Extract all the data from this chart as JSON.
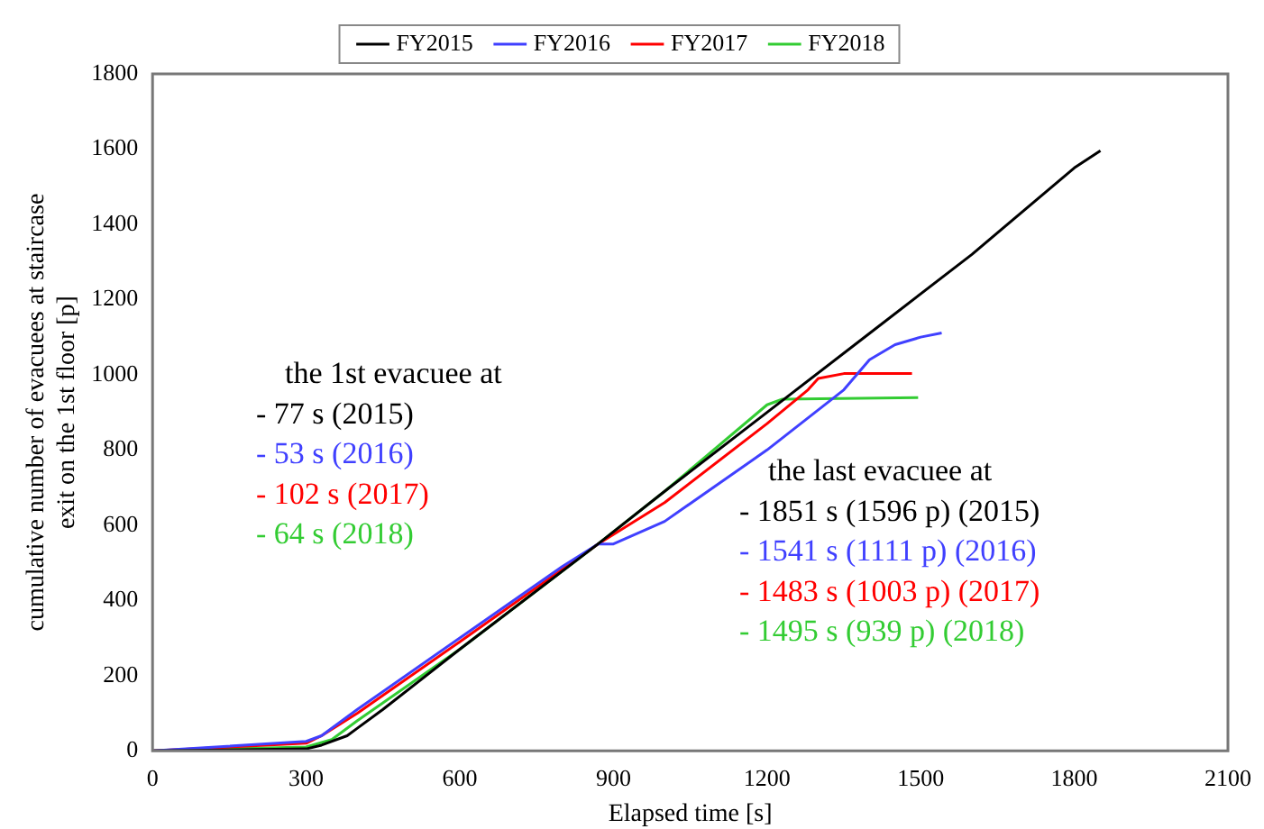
{
  "chart_data": {
    "type": "line",
    "xlabel": "Elapsed time [s]",
    "ylabel": "cumulative number of evacuees at staircase\nexit on the 1st floor [p]",
    "xlim": [
      0,
      2100
    ],
    "xticks": [
      0,
      300,
      600,
      900,
      1200,
      1500,
      1800,
      2100
    ],
    "ylim": [
      0,
      1800
    ],
    "yticks": [
      0,
      200,
      400,
      600,
      800,
      1000,
      1200,
      1400,
      1600,
      1800
    ],
    "grid": false,
    "legend": "top",
    "marker": "none",
    "line_style": "solid",
    "series": [
      {
        "name": "FY2015",
        "color": "#000000",
        "x": [
          0,
          300,
          330,
          380,
          400,
          450,
          600,
          870,
          1000,
          1200,
          1400,
          1600,
          1800,
          1851
        ],
        "values": [
          0,
          5,
          15,
          40,
          60,
          110,
          270,
          550,
          690,
          900,
          1110,
          1320,
          1550,
          1596
        ]
      },
      {
        "name": "FY2016",
        "color": "#4040ff",
        "x": [
          0,
          300,
          330,
          400,
          600,
          800,
          870,
          900,
          1000,
          1200,
          1350,
          1400,
          1450,
          1500,
          1541
        ],
        "values": [
          0,
          25,
          40,
          110,
          300,
          490,
          550,
          550,
          610,
          800,
          960,
          1040,
          1080,
          1100,
          1111
        ]
      },
      {
        "name": "FY2017",
        "color": "#ff0000",
        "x": [
          0,
          300,
          330,
          400,
          600,
          870,
          1000,
          1200,
          1280,
          1300,
          1350,
          1483
        ],
        "values": [
          0,
          20,
          40,
          100,
          290,
          550,
          660,
          870,
          960,
          990,
          1003,
          1003
        ]
      },
      {
        "name": "FY2018",
        "color": "#33cc33",
        "x": [
          0,
          300,
          350,
          400,
          600,
          870,
          1000,
          1200,
          1230,
          1495
        ],
        "values": [
          0,
          10,
          30,
          80,
          270,
          550,
          690,
          920,
          935,
          939
        ]
      }
    ],
    "annotations": [
      "the 1st evacuee at",
      "- 77 s (2015)",
      "- 53 s (2016)",
      "- 102 s (2017)",
      "- 64 s (2018)",
      "the last evacuee at",
      "- 1851 s (1596 p) (2015)",
      "- 1541 s (1111 p) (2016)",
      "- 1483 s (1003 p) (2017)",
      "- 1495 s (939 p) (2018)"
    ]
  }
}
